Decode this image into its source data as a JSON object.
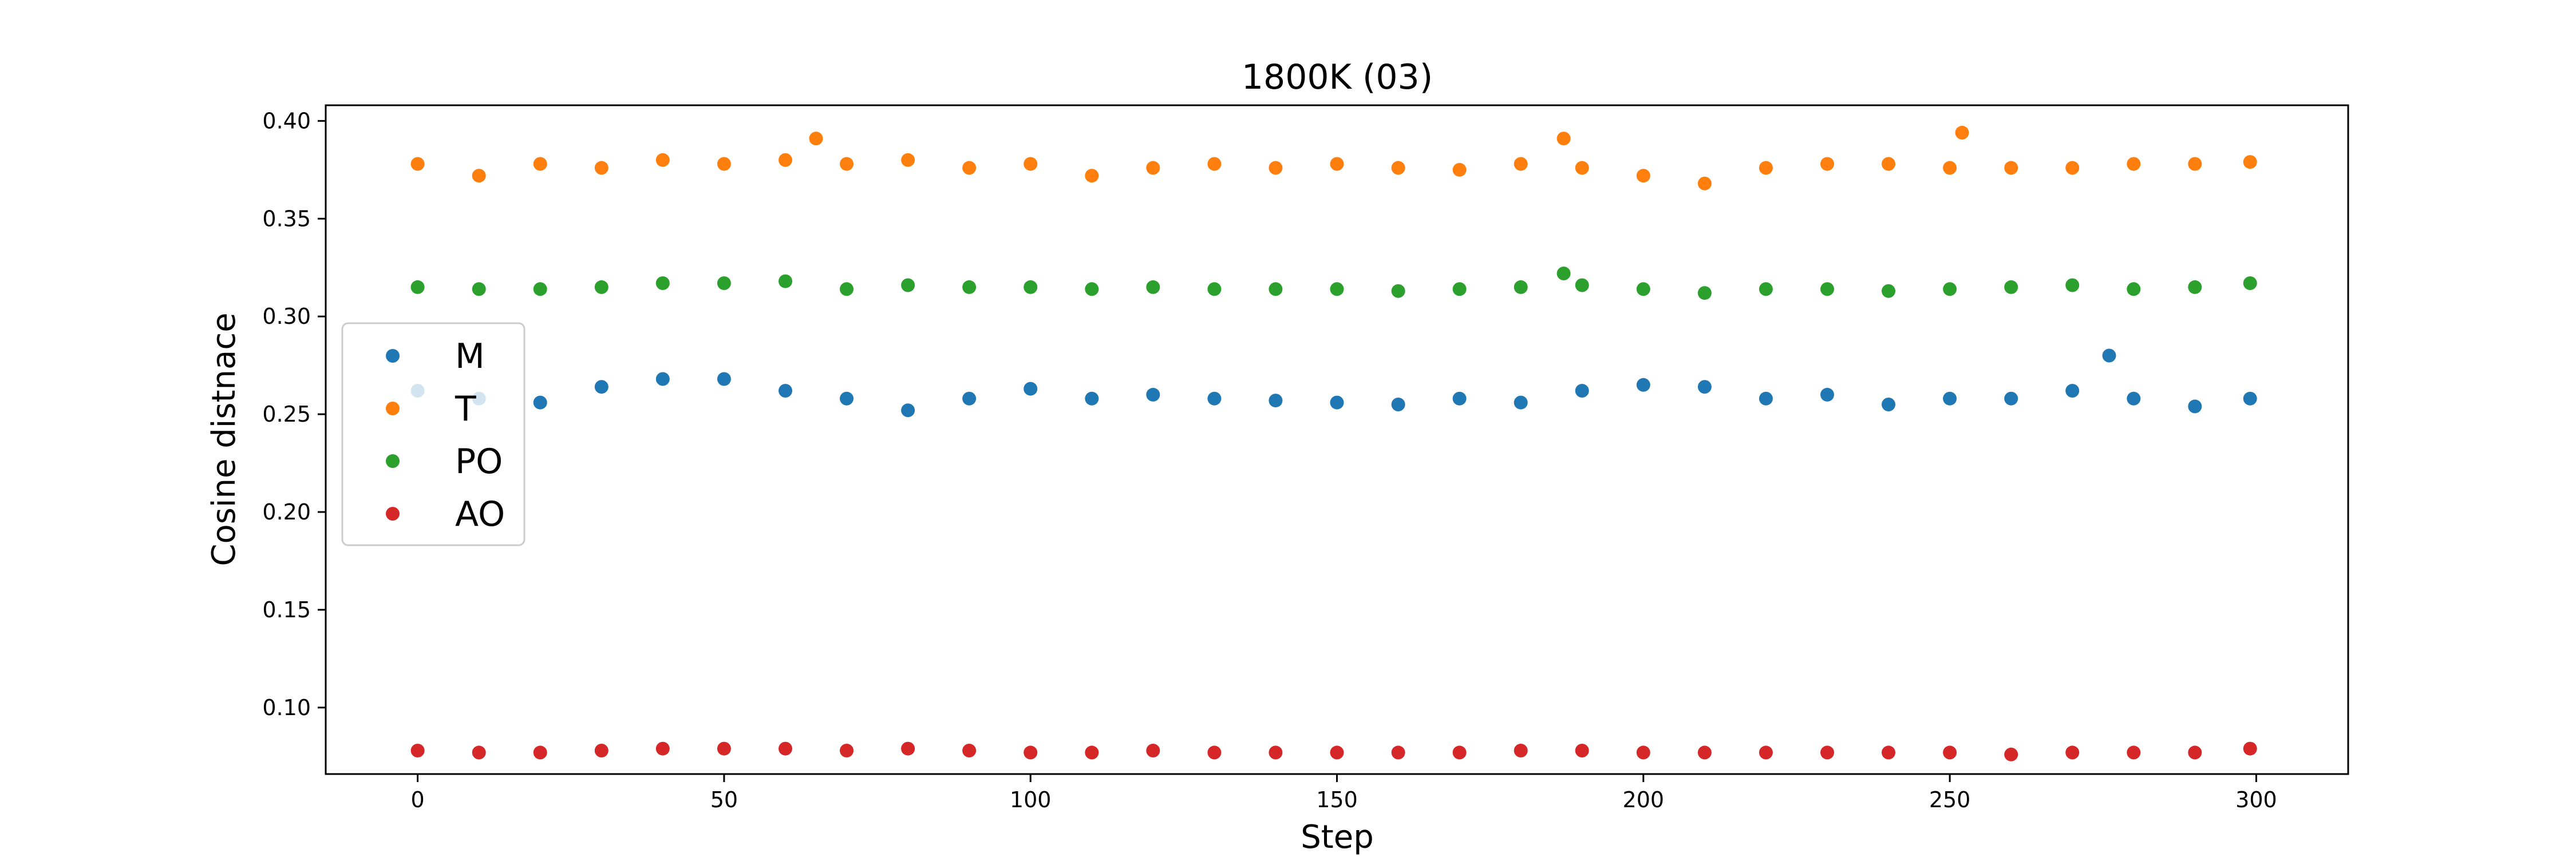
{
  "chart_data": {
    "type": "scatter",
    "title": "1800K (03)",
    "xlabel": "Step",
    "ylabel": "Cosine distnace",
    "xlim": [
      -15,
      315
    ],
    "ylim": [
      0.066,
      0.408
    ],
    "x_ticks": [
      0,
      50,
      100,
      150,
      200,
      250,
      300
    ],
    "y_ticks": [
      0.1,
      0.15,
      0.2,
      0.25,
      0.3,
      0.35,
      0.4
    ],
    "grid": false,
    "legend_position": "center-left",
    "series": [
      {
        "name": "M",
        "color": "#1f77b4",
        "x": [
          0,
          10,
          20,
          30,
          40,
          50,
          60,
          70,
          80,
          90,
          100,
          110,
          120,
          130,
          140,
          150,
          160,
          170,
          180,
          190,
          200,
          210,
          220,
          230,
          240,
          250,
          260,
          270,
          276,
          280,
          290,
          299
        ],
        "y": [
          0.262,
          0.258,
          0.256,
          0.264,
          0.268,
          0.268,
          0.262,
          0.258,
          0.252,
          0.258,
          0.263,
          0.258,
          0.26,
          0.258,
          0.257,
          0.256,
          0.255,
          0.258,
          0.256,
          0.262,
          0.265,
          0.264,
          0.258,
          0.26,
          0.255,
          0.258,
          0.258,
          0.262,
          0.28,
          0.258,
          0.254,
          0.258
        ]
      },
      {
        "name": "T",
        "color": "#ff7f0e",
        "x": [
          0,
          10,
          20,
          30,
          40,
          50,
          60,
          65,
          70,
          80,
          90,
          100,
          110,
          120,
          130,
          140,
          150,
          160,
          170,
          180,
          187,
          190,
          200,
          210,
          220,
          230,
          240,
          250,
          252,
          260,
          270,
          280,
          290,
          299
        ],
        "y": [
          0.378,
          0.372,
          0.378,
          0.376,
          0.38,
          0.378,
          0.38,
          0.391,
          0.378,
          0.38,
          0.376,
          0.378,
          0.372,
          0.376,
          0.378,
          0.376,
          0.378,
          0.376,
          0.375,
          0.378,
          0.391,
          0.376,
          0.372,
          0.368,
          0.376,
          0.378,
          0.378,
          0.376,
          0.394,
          0.376,
          0.376,
          0.378,
          0.378,
          0.379
        ]
      },
      {
        "name": "PO",
        "color": "#2ca02c",
        "x": [
          0,
          10,
          20,
          30,
          40,
          50,
          60,
          70,
          80,
          90,
          100,
          110,
          120,
          130,
          140,
          150,
          160,
          170,
          180,
          187,
          190,
          200,
          210,
          220,
          230,
          240,
          250,
          260,
          270,
          280,
          290,
          299
        ],
        "y": [
          0.315,
          0.314,
          0.314,
          0.315,
          0.317,
          0.317,
          0.318,
          0.314,
          0.316,
          0.315,
          0.315,
          0.314,
          0.315,
          0.314,
          0.314,
          0.314,
          0.313,
          0.314,
          0.315,
          0.322,
          0.316,
          0.314,
          0.312,
          0.314,
          0.314,
          0.313,
          0.314,
          0.315,
          0.316,
          0.314,
          0.315,
          0.317
        ]
      },
      {
        "name": "AO",
        "color": "#d62728",
        "x": [
          0,
          10,
          20,
          30,
          40,
          50,
          60,
          70,
          80,
          90,
          100,
          110,
          120,
          130,
          140,
          150,
          160,
          170,
          180,
          190,
          200,
          210,
          220,
          230,
          240,
          250,
          260,
          270,
          280,
          290,
          299
        ],
        "y": [
          0.078,
          0.077,
          0.077,
          0.078,
          0.079,
          0.079,
          0.079,
          0.078,
          0.079,
          0.078,
          0.077,
          0.077,
          0.078,
          0.077,
          0.077,
          0.077,
          0.077,
          0.077,
          0.078,
          0.078,
          0.077,
          0.077,
          0.077,
          0.077,
          0.077,
          0.077,
          0.076,
          0.077,
          0.077,
          0.077,
          0.079
        ]
      }
    ]
  }
}
